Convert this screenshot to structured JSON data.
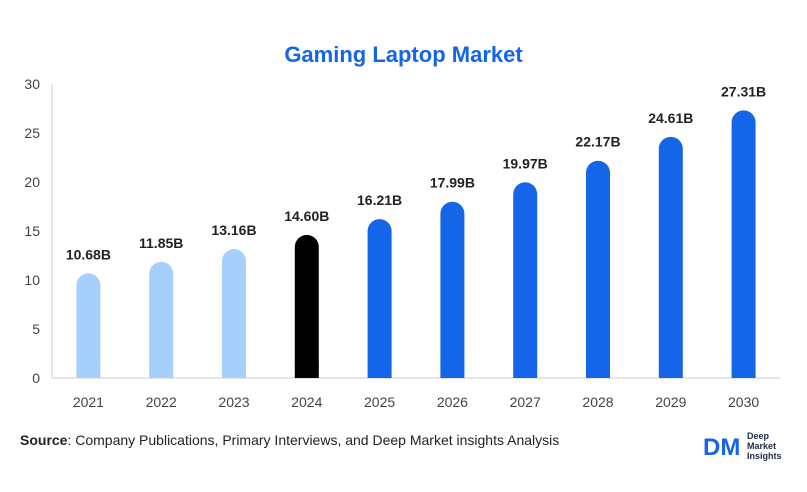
{
  "chart_data": {
    "type": "bar",
    "title": "Gaming Laptop Market",
    "categories": [
      "2021",
      "2022",
      "2023",
      "2024",
      "2025",
      "2026",
      "2027",
      "2028",
      "2029",
      "2030"
    ],
    "values": [
      10.68,
      11.85,
      13.16,
      14.6,
      16.21,
      17.99,
      19.97,
      22.17,
      24.61,
      27.31
    ],
    "labels": [
      "10.68B",
      "11.85B",
      "13.16B",
      "14.60B",
      "16.21B",
      "17.99B",
      "19.97B",
      "22.17B",
      "24.61B",
      "27.31B"
    ],
    "colors": [
      "#a7cffb",
      "#a7cffb",
      "#a7cffb",
      "#000000",
      "#1565e8",
      "#1565e8",
      "#1565e8",
      "#1565e8",
      "#1565e8",
      "#1565e8"
    ],
    "ylim": [
      0,
      30
    ],
    "yticks": [
      0,
      5,
      10,
      15,
      20,
      25,
      30
    ],
    "xlabel": "",
    "ylabel": "",
    "grid": false
  },
  "source": {
    "label": "Source",
    "text": ": Company Publications, Primary Interviews, and Deep Market insights Analysis"
  },
  "logo": {
    "mark": "DM",
    "line1": "Deep",
    "line2": "Market",
    "line3": "Insights",
    "color_dark": "#1f2a44",
    "color_accent": "#1565e8"
  }
}
